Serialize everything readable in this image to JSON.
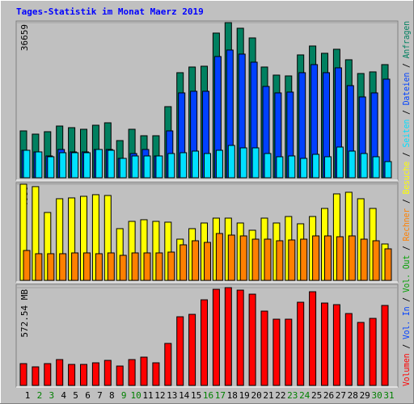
{
  "title": "Tages-Statistik im Monat Maerz 2019",
  "legend_separator": " / ",
  "chart_data": [
    {
      "type": "bar",
      "ylim": [
        0,
        36659
      ],
      "yticks": [
        36659
      ],
      "series": [
        {
          "name": "Anfragen",
          "color": "#008060",
          "values": [
            11078,
            10314,
            10887,
            12224,
            11842,
            11460,
            12415,
            12988,
            8786,
            11460,
            9932,
            9932,
            16808,
            24830,
            26167,
            26358,
            34189,
            36659,
            35335,
            33043,
            26167,
            24257,
            24066,
            29032,
            31133,
            29414,
            30369,
            27886,
            24639,
            25021,
            26740
          ]
        },
        {
          "name": "Dateien",
          "color": "#0040ff",
          "values": [
            6494,
            6112,
            5157,
            6685,
            6112,
            6112,
            6685,
            6685,
            4584,
            5730,
            6685,
            5157,
            11078,
            20055,
            20437,
            20437,
            28650,
            30178,
            29223,
            27313,
            21583,
            20055,
            20246,
            24830,
            26740,
            24830,
            25976,
            21774,
            19100,
            20055,
            23302
          ]
        },
        {
          "name": "Seiten",
          "color": "#00e0ff",
          "values": [
            6494,
            6112,
            4966,
            5921,
            5921,
            5921,
            6685,
            6494,
            4584,
            5157,
            5157,
            5157,
            5730,
            5921,
            6303,
            5730,
            6494,
            7640,
            7067,
            7067,
            5730,
            4966,
            5157,
            4584,
            5539,
            4966,
            7258,
            6303,
            5730,
            4966,
            3820
          ]
        }
      ]
    },
    {
      "type": "bar",
      "ylim": [
        0,
        4080
      ],
      "yticks": [
        4080
      ],
      "series": [
        {
          "name": "Besuche",
          "color": "#ffff00",
          "values": [
            4080,
            3979,
            2881,
            3464,
            3499,
            3567,
            3636,
            3602,
            2195,
            2504,
            2573,
            2504,
            2470,
            1749,
            2195,
            2435,
            2641,
            2641,
            2435,
            2127,
            2641,
            2435,
            2710,
            2401,
            2710,
            3053,
            3670,
            3739,
            3464,
            3053,
            1544
          ]
        },
        {
          "name": "Rechner",
          "color": "#ff8000",
          "values": [
            1269,
            1132,
            1132,
            1132,
            1166,
            1166,
            1132,
            1166,
            1063,
            1166,
            1166,
            1166,
            1201,
            1509,
            1681,
            1612,
            1989,
            1921,
            1887,
            1749,
            1749,
            1681,
            1715,
            1749,
            1887,
            1887,
            1852,
            1887,
            1749,
            1681,
            1338
          ]
        }
      ]
    },
    {
      "type": "bar",
      "ylim": [
        0,
        572.54
      ],
      "yticks": [
        {
          "value": 572.54,
          "label": "572.54 MB"
        }
      ],
      "categories": [
        "1",
        "2",
        "3",
        "4",
        "5",
        "6",
        "7",
        "8",
        "9",
        "10",
        "11",
        "12",
        "13",
        "14",
        "15",
        "16",
        "17",
        "18",
        "19",
        "20",
        "21",
        "22",
        "23",
        "24",
        "25",
        "26",
        "27",
        "28",
        "29",
        "30",
        "31"
      ],
      "category_colors": [
        "#000000",
        "#008000",
        "#008000",
        "#000000",
        "#000000",
        "#000000",
        "#000000",
        "#000000",
        "#008000",
        "#008000",
        "#000000",
        "#000000",
        "#000000",
        "#000000",
        "#000000",
        "#008000",
        "#008000",
        "#000000",
        "#000000",
        "#000000",
        "#000000",
        "#000000",
        "#008000",
        "#008000",
        "#000000",
        "#000000",
        "#000000",
        "#000000",
        "#000000",
        "#008000",
        "#008000"
      ],
      "series": [
        {
          "name": "Volumen",
          "color": "#ff0000",
          "values": [
            127.71,
            108.79,
            127.71,
            151.36,
            122.98,
            122.98,
            132.44,
            146.63,
            113.52,
            151.36,
            165.55,
            132.44,
            245.96,
            402.05,
            416.24,
            501.38,
            562.87,
            572.54,
            558.14,
            534.49,
            435.16,
            387.86,
            387.86,
            487.19,
            548.68,
            482.46,
            473.0,
            420.97,
            368.94,
            392.59,
            468.27
          ]
        }
      ],
      "legend_only": [
        {
          "name": "Vol. In",
          "color": "#0040ff"
        },
        {
          "name": "Vol. Out",
          "color": "#00a000"
        }
      ]
    }
  ]
}
